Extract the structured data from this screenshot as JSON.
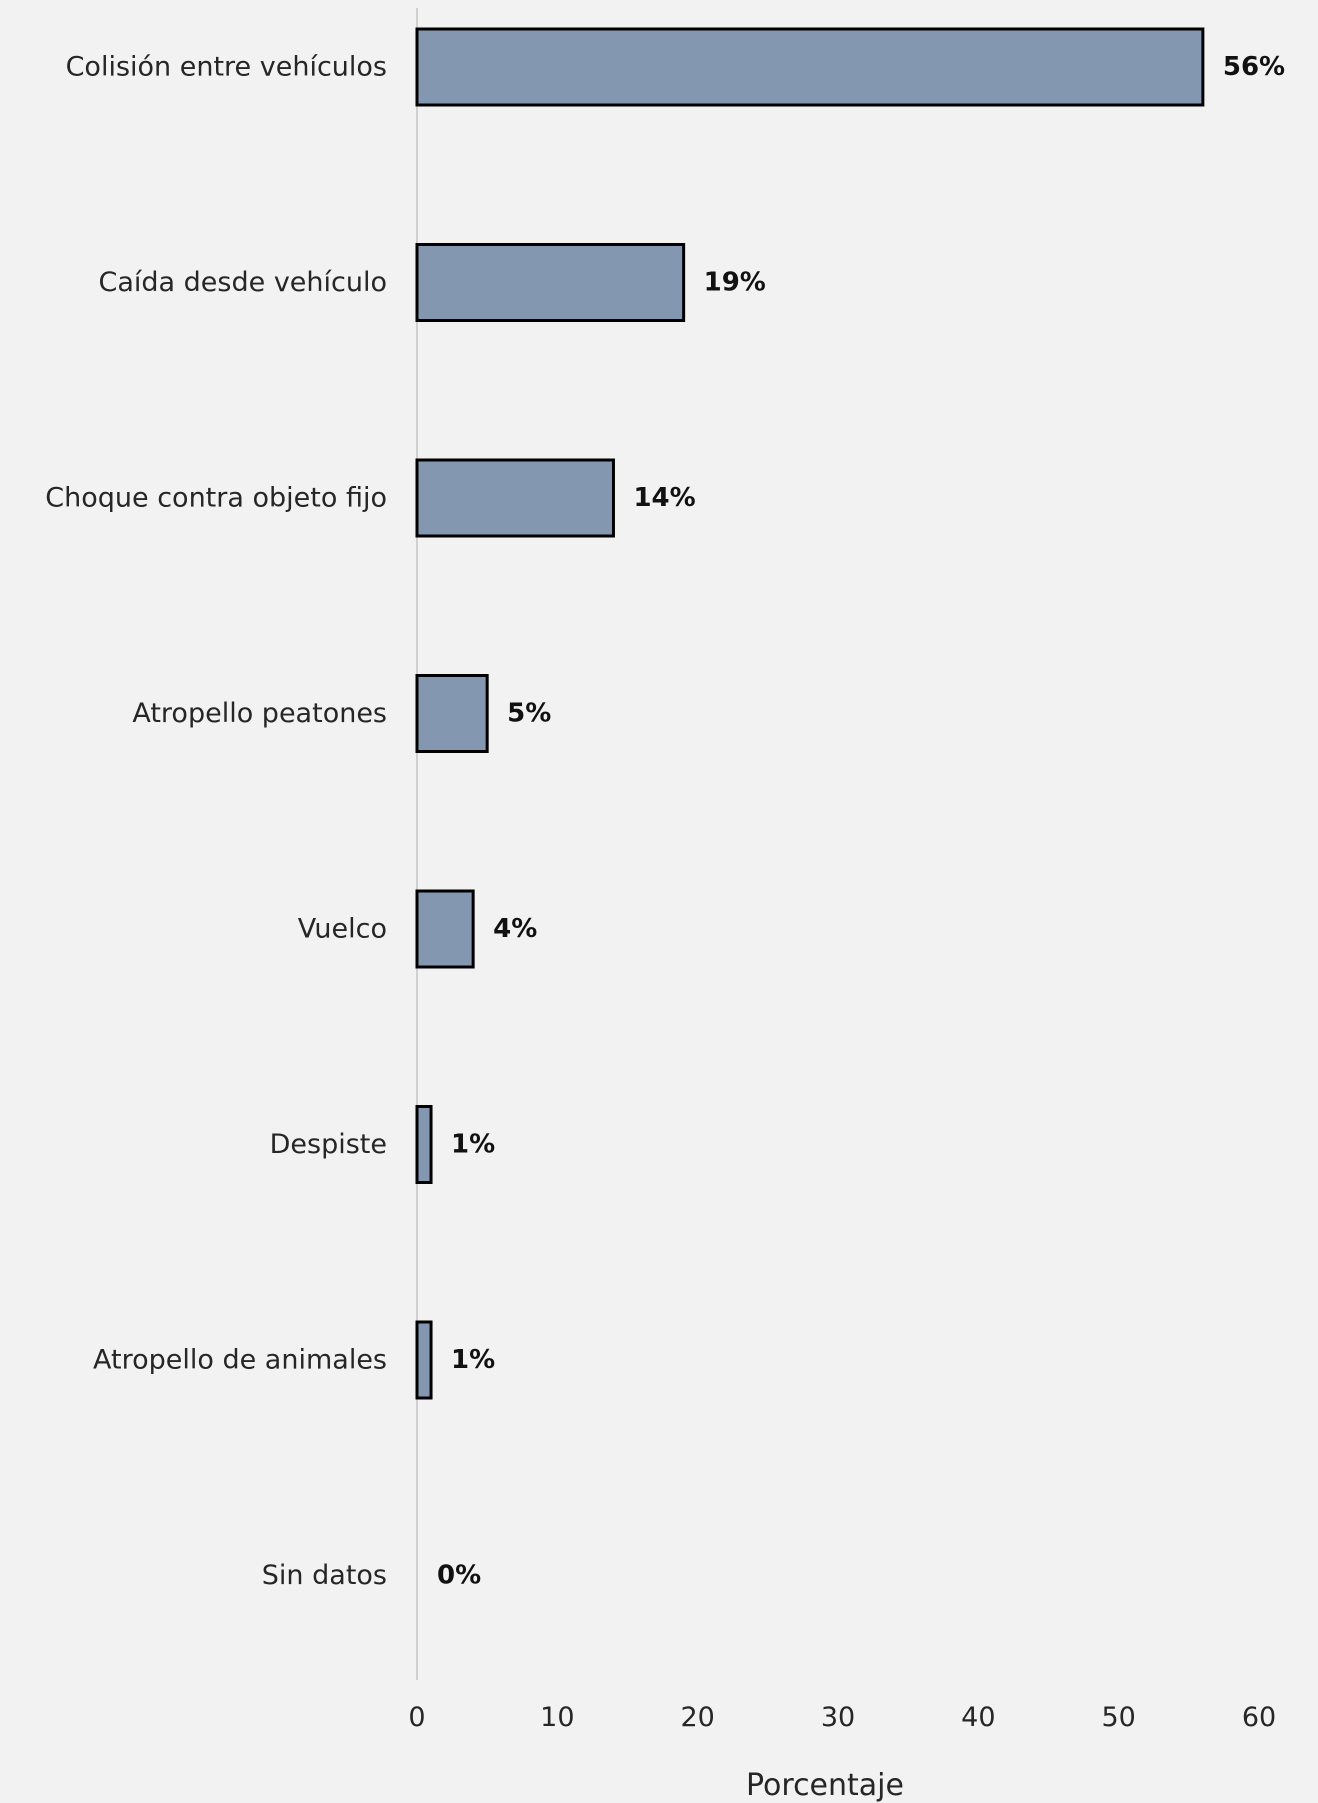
{
  "chart_data": {
    "type": "bar",
    "orientation": "horizontal",
    "categories": [
      "Colisión entre vehículos",
      "Caída desde vehículo",
      "Choque contra objeto fijo",
      "Atropello peatones",
      "Vuelco",
      "Despiste",
      "Atropello de animales",
      "Sin datos"
    ],
    "values": [
      56,
      19,
      14,
      5,
      4,
      1,
      1,
      0
    ],
    "value_labels": [
      "56%",
      "19%",
      "14%",
      "5%",
      "4%",
      "1%",
      "1%",
      "0%"
    ],
    "title": "",
    "xlabel": "Porcentaje",
    "ylabel": "",
    "xlim": [
      0,
      60
    ],
    "x_ticks": [
      0,
      10,
      20,
      30,
      40,
      50,
      60
    ],
    "grid": false,
    "legend": "none",
    "colors": {
      "bar_fill": "#8497b0",
      "bar_stroke": "#000000",
      "background": "#f2f2f2",
      "axis": "#d0d0d0"
    }
  }
}
